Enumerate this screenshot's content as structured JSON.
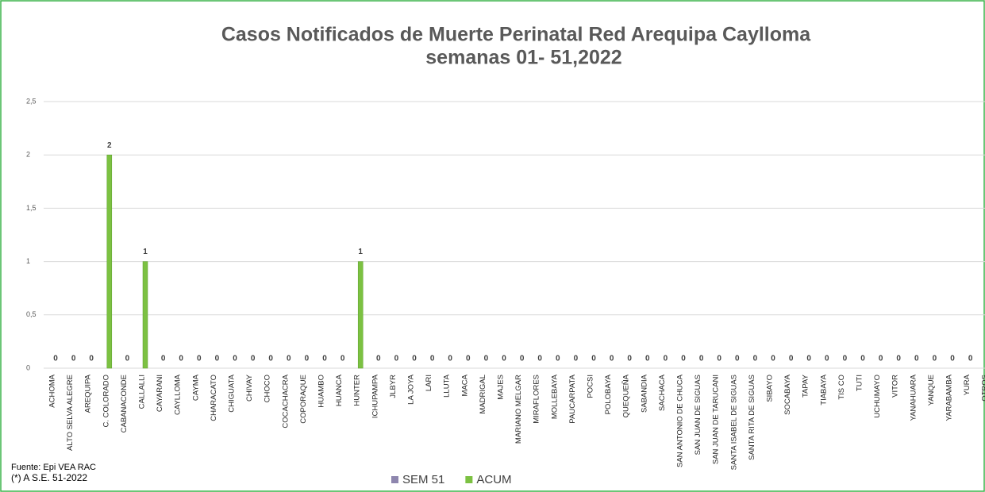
{
  "chart_data": {
    "type": "bar",
    "title": "Casos Notificados de Muerte Perinatal Red Arequipa Caylloma",
    "subtitle": "semanas 01- 51,2022",
    "footnotes": [
      "Fuente:  Epi VEA RAC",
      "(*) A S.E. 51-2022"
    ],
    "categories": [
      "ACHOMA",
      "ALTO SELVA ALEGRE",
      "AREQUIPA",
      "C. COLORADO",
      "CABANACONDE",
      "CALLALLI",
      "CAYARANI",
      "CAYLLOMA",
      "CAYMA",
      "CHARACATO",
      "CHIGUATA",
      "CHIVAY",
      "CHOCO",
      "COCACHACRA",
      "COPORAQUE",
      "HUAMBO",
      "HUANCA",
      "HUNTER",
      "ICHUPAMPA",
      "JLBYR",
      "LA JOYA",
      "LARI",
      "LLUTA",
      "MACA",
      "MADRIGAL",
      "MAJES",
      "MARIANO MELGAR",
      "MIRAFLORES",
      "MOLLEBAYA",
      "PAUCARPATA",
      "POCSI",
      "POLOBAYA",
      "QUEQUEÑA",
      "SABANDIA",
      "SACHACA",
      "SAN ANTONIO DE CHUCA",
      "SAN JUAN DE SIGUAS",
      "SAN JUAN DE TARUCANI",
      "SANTA ISABEL DE SIGUAS",
      "SANTA RITA DE SIGUAS",
      "SIBAYO",
      "SOCABAYA",
      "TAPAY",
      "TIABAYA",
      "TIS CO",
      "TUTI",
      "UCHUMAYO",
      "VITOR",
      "YANAHUARA",
      "YANQUE",
      "YARABAMBA",
      "YURA",
      "OTROS"
    ],
    "series": [
      {
        "name": "SEM 51",
        "color": "#8e86ae",
        "values": [
          0,
          0,
          0,
          0,
          0,
          0,
          0,
          0,
          0,
          0,
          0,
          0,
          0,
          0,
          0,
          0,
          0,
          0,
          0,
          0,
          0,
          0,
          0,
          0,
          0,
          0,
          0,
          0,
          0,
          0,
          0,
          0,
          0,
          0,
          0,
          0,
          0,
          0,
          0,
          0,
          0,
          0,
          0,
          0,
          0,
          0,
          0,
          0,
          0,
          0,
          0,
          0,
          0
        ]
      },
      {
        "name": "ACUM",
        "color": "#7cc142",
        "values": [
          0,
          0,
          0,
          2,
          0,
          1,
          0,
          0,
          0,
          0,
          0,
          0,
          0,
          0,
          0,
          0,
          0,
          1,
          0,
          0,
          0,
          0,
          0,
          0,
          0,
          0,
          0,
          0,
          0,
          0,
          0,
          0,
          0,
          0,
          0,
          0,
          0,
          0,
          0,
          0,
          0,
          0,
          0,
          0,
          0,
          0,
          0,
          0,
          0,
          0,
          0,
          0,
          0
        ],
        "data_labels": true
      }
    ],
    "ylim": [
      0,
      2.5
    ],
    "yticks": [
      0,
      {
        "value": 0.5,
        "label": "0,5"
      },
      1,
      {
        "value": 1.5,
        "label": "1,5"
      },
      2,
      {
        "value": 2.5,
        "label": "2,5"
      }
    ],
    "grid": true,
    "legend": "bottom"
  }
}
